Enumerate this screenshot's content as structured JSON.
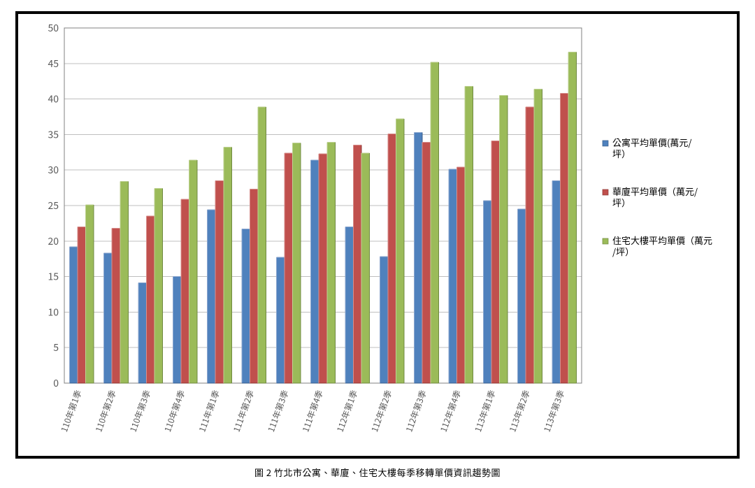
{
  "caption": "圖 2 竹北市公寓、華廈、住宅大樓每季移轉單價資訊趨勢圖",
  "chart": {
    "type": "bar",
    "background_color": "#ffffff",
    "panel_border_color": "#000000",
    "plot_border_color": "#808080",
    "grid_color": "#bfbfbf",
    "tick_label_color": "#595959",
    "tick_label_fontsize": 14,
    "xtick_label_fontsize": 12,
    "legend_fontsize": 13,
    "ylim": [
      0,
      50
    ],
    "ytick_step": 5,
    "x_axis_rotation_deg": 70,
    "bar_group_width_ratio": 0.7,
    "categories": [
      "110年第1季",
      "110年第2季",
      "110年第3季",
      "110年第4季",
      "111年第1季",
      "111年第2季",
      "111年第3季",
      "111年第4季",
      "112年第1季",
      "112年第2季",
      "112年第3季",
      "112年第4季",
      "113年第1季",
      "113年第2季",
      "113年第3季"
    ],
    "series": [
      {
        "name": "公寓平均單價(萬元/坪）",
        "fill_color": "#4f81bd",
        "edge_dark": "#385d8a",
        "edge_light": "#8fa9d0",
        "values": [
          19.2,
          18.3,
          14.1,
          15.0,
          24.4,
          21.7,
          17.7,
          31.4,
          22.0,
          17.8,
          35.3,
          30.1,
          25.7,
          24.5,
          28.5
        ]
      },
      {
        "name": "華廈平均單價（萬元/坪）",
        "fill_color": "#c0504d",
        "edge_dark": "#8c3836",
        "edge_light": "#d8908e",
        "values": [
          22.0,
          21.8,
          23.5,
          25.9,
          28.5,
          27.3,
          32.4,
          32.3,
          33.5,
          35.1,
          33.9,
          30.4,
          34.1,
          38.9,
          40.8
        ]
      },
      {
        "name": "住宅大樓平均單價（萬元/坪）",
        "fill_color": "#9bbb59",
        "edge_dark": "#6f8940",
        "edge_light": "#bfd294",
        "values": [
          25.1,
          28.4,
          27.4,
          31.4,
          33.2,
          38.9,
          33.8,
          33.9,
          32.4,
          37.2,
          45.2,
          41.8,
          40.5,
          41.4,
          46.6
        ]
      }
    ]
  }
}
